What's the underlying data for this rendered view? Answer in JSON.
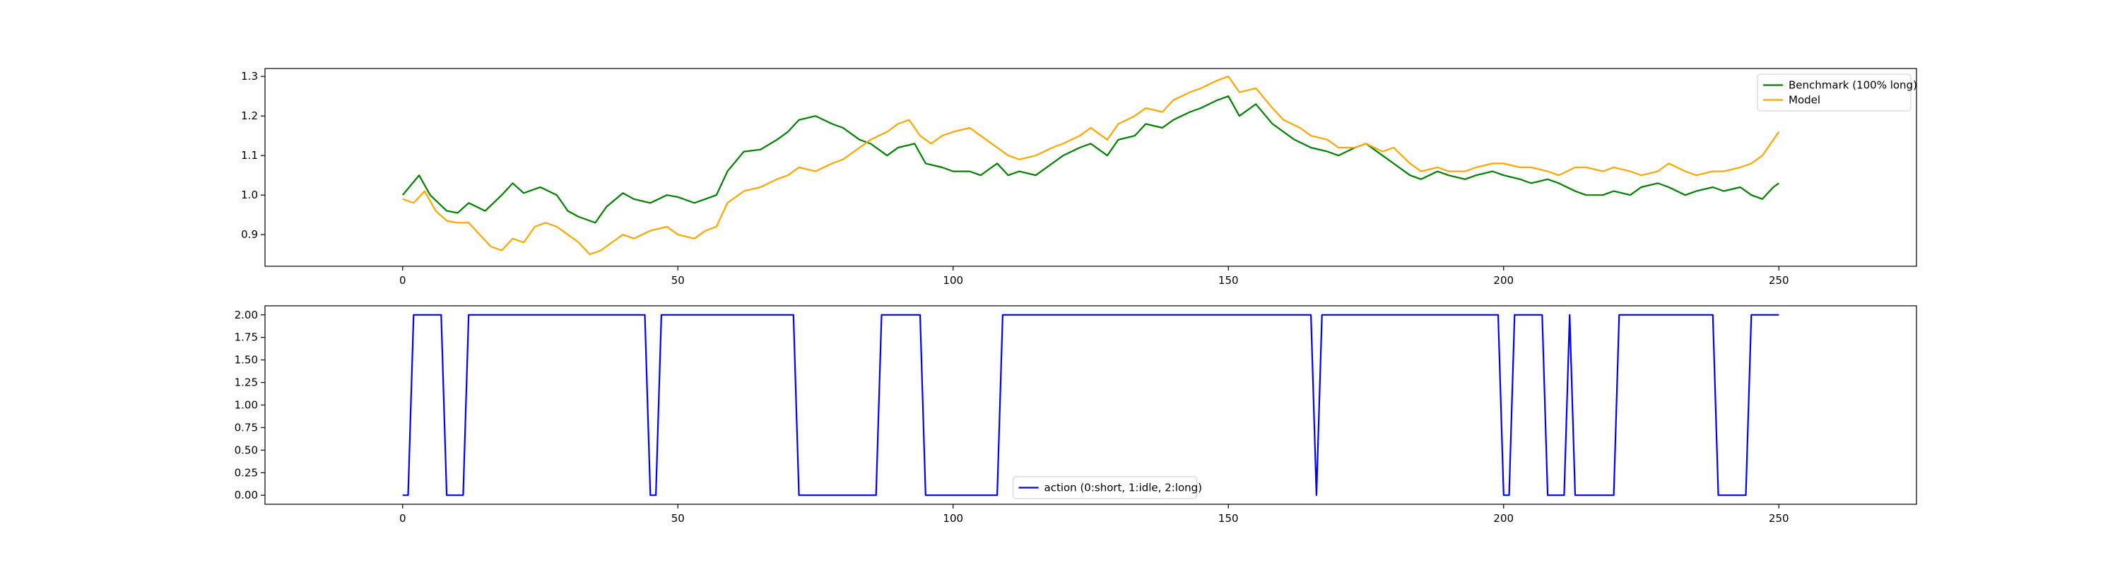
{
  "chart_data": [
    {
      "type": "line",
      "title": "",
      "xlabel": "",
      "ylabel": "",
      "xlim": [
        -25,
        275
      ],
      "ylim": [
        0.82,
        1.32
      ],
      "xticks": [
        0,
        50,
        100,
        150,
        200,
        250
      ],
      "yticks": [
        0.9,
        1.0,
        1.1,
        1.2,
        1.3
      ],
      "ytick_labels": [
        "0.9",
        "1.0",
        "1.1",
        "1.2",
        "1.3"
      ],
      "grid": false,
      "legend_position": "top-right",
      "series": [
        {
          "name": "Benchmark (100% long)",
          "color": "#008000",
          "points": [
            [
              0,
              1.0
            ],
            [
              3,
              1.05
            ],
            [
              5,
              1.0
            ],
            [
              8,
              0.96
            ],
            [
              10,
              0.955
            ],
            [
              12,
              0.98
            ],
            [
              15,
              0.96
            ],
            [
              18,
              1.0
            ],
            [
              20,
              1.03
            ],
            [
              22,
              1.005
            ],
            [
              25,
              1.02
            ],
            [
              28,
              1.0
            ],
            [
              30,
              0.96
            ],
            [
              32,
              0.945
            ],
            [
              35,
              0.93
            ],
            [
              37,
              0.97
            ],
            [
              40,
              1.005
            ],
            [
              42,
              0.99
            ],
            [
              45,
              0.98
            ],
            [
              48,
              1.0
            ],
            [
              50,
              0.995
            ],
            [
              53,
              0.98
            ],
            [
              55,
              0.99
            ],
            [
              57,
              1.0
            ],
            [
              59,
              1.06
            ],
            [
              62,
              1.11
            ],
            [
              65,
              1.115
            ],
            [
              68,
              1.14
            ],
            [
              70,
              1.16
            ],
            [
              72,
              1.19
            ],
            [
              75,
              1.2
            ],
            [
              78,
              1.18
            ],
            [
              80,
              1.17
            ],
            [
              83,
              1.14
            ],
            [
              85,
              1.13
            ],
            [
              88,
              1.1
            ],
            [
              90,
              1.12
            ],
            [
              93,
              1.13
            ],
            [
              95,
              1.08
            ],
            [
              98,
              1.07
            ],
            [
              100,
              1.06
            ],
            [
              103,
              1.06
            ],
            [
              105,
              1.05
            ],
            [
              108,
              1.08
            ],
            [
              110,
              1.05
            ],
            [
              112,
              1.06
            ],
            [
              115,
              1.05
            ],
            [
              118,
              1.08
            ],
            [
              120,
              1.1
            ],
            [
              123,
              1.12
            ],
            [
              125,
              1.13
            ],
            [
              128,
              1.1
            ],
            [
              130,
              1.14
            ],
            [
              133,
              1.15
            ],
            [
              135,
              1.18
            ],
            [
              138,
              1.17
            ],
            [
              140,
              1.19
            ],
            [
              143,
              1.21
            ],
            [
              145,
              1.22
            ],
            [
              148,
              1.24
            ],
            [
              150,
              1.25
            ],
            [
              152,
              1.2
            ],
            [
              155,
              1.23
            ],
            [
              158,
              1.18
            ],
            [
              160,
              1.16
            ],
            [
              162,
              1.14
            ],
            [
              165,
              1.12
            ],
            [
              168,
              1.11
            ],
            [
              170,
              1.1
            ],
            [
              173,
              1.12
            ],
            [
              175,
              1.13
            ],
            [
              178,
              1.1
            ],
            [
              180,
              1.08
            ],
            [
              183,
              1.05
            ],
            [
              185,
              1.04
            ],
            [
              188,
              1.06
            ],
            [
              190,
              1.05
            ],
            [
              193,
              1.04
            ],
            [
              195,
              1.05
            ],
            [
              198,
              1.06
            ],
            [
              200,
              1.05
            ],
            [
              203,
              1.04
            ],
            [
              205,
              1.03
            ],
            [
              208,
              1.04
            ],
            [
              210,
              1.03
            ],
            [
              213,
              1.01
            ],
            [
              215,
              1.0
            ],
            [
              218,
              1.0
            ],
            [
              220,
              1.01
            ],
            [
              223,
              1.0
            ],
            [
              225,
              1.02
            ],
            [
              228,
              1.03
            ],
            [
              230,
              1.02
            ],
            [
              233,
              1.0
            ],
            [
              235,
              1.01
            ],
            [
              238,
              1.02
            ],
            [
              240,
              1.01
            ],
            [
              243,
              1.02
            ],
            [
              245,
              1.0
            ],
            [
              247,
              0.99
            ],
            [
              249,
              1.02
            ],
            [
              250,
              1.03
            ]
          ]
        },
        {
          "name": "Model",
          "color": "#FFA500",
          "points": [
            [
              0,
              0.99
            ],
            [
              2,
              0.98
            ],
            [
              4,
              1.01
            ],
            [
              6,
              0.96
            ],
            [
              8,
              0.935
            ],
            [
              10,
              0.93
            ],
            [
              12,
              0.93
            ],
            [
              14,
              0.9
            ],
            [
              16,
              0.87
            ],
            [
              18,
              0.86
            ],
            [
              20,
              0.89
            ],
            [
              22,
              0.88
            ],
            [
              24,
              0.92
            ],
            [
              26,
              0.93
            ],
            [
              28,
              0.92
            ],
            [
              30,
              0.9
            ],
            [
              32,
              0.88
            ],
            [
              34,
              0.85
            ],
            [
              36,
              0.86
            ],
            [
              38,
              0.88
            ],
            [
              40,
              0.9
            ],
            [
              42,
              0.89
            ],
            [
              45,
              0.91
            ],
            [
              48,
              0.92
            ],
            [
              50,
              0.9
            ],
            [
              53,
              0.89
            ],
            [
              55,
              0.91
            ],
            [
              57,
              0.92
            ],
            [
              59,
              0.98
            ],
            [
              62,
              1.01
            ],
            [
              65,
              1.02
            ],
            [
              68,
              1.04
            ],
            [
              70,
              1.05
            ],
            [
              72,
              1.07
            ],
            [
              75,
              1.06
            ],
            [
              78,
              1.08
            ],
            [
              80,
              1.09
            ],
            [
              83,
              1.12
            ],
            [
              85,
              1.14
            ],
            [
              88,
              1.16
            ],
            [
              90,
              1.18
            ],
            [
              92,
              1.19
            ],
            [
              94,
              1.15
            ],
            [
              96,
              1.13
            ],
            [
              98,
              1.15
            ],
            [
              100,
              1.16
            ],
            [
              103,
              1.17
            ],
            [
              105,
              1.15
            ],
            [
              108,
              1.12
            ],
            [
              110,
              1.1
            ],
            [
              112,
              1.09
            ],
            [
              115,
              1.1
            ],
            [
              118,
              1.12
            ],
            [
              120,
              1.13
            ],
            [
              123,
              1.15
            ],
            [
              125,
              1.17
            ],
            [
              128,
              1.14
            ],
            [
              130,
              1.18
            ],
            [
              133,
              1.2
            ],
            [
              135,
              1.22
            ],
            [
              138,
              1.21
            ],
            [
              140,
              1.24
            ],
            [
              143,
              1.26
            ],
            [
              145,
              1.27
            ],
            [
              148,
              1.29
            ],
            [
              150,
              1.3
            ],
            [
              152,
              1.26
            ],
            [
              155,
              1.27
            ],
            [
              158,
              1.22
            ],
            [
              160,
              1.19
            ],
            [
              163,
              1.17
            ],
            [
              165,
              1.15
            ],
            [
              168,
              1.14
            ],
            [
              170,
              1.12
            ],
            [
              173,
              1.12
            ],
            [
              175,
              1.13
            ],
            [
              178,
              1.11
            ],
            [
              180,
              1.12
            ],
            [
              183,
              1.08
            ],
            [
              185,
              1.06
            ],
            [
              188,
              1.07
            ],
            [
              190,
              1.06
            ],
            [
              193,
              1.06
            ],
            [
              195,
              1.07
            ],
            [
              198,
              1.08
            ],
            [
              200,
              1.08
            ],
            [
              203,
              1.07
            ],
            [
              205,
              1.07
            ],
            [
              208,
              1.06
            ],
            [
              210,
              1.05
            ],
            [
              213,
              1.07
            ],
            [
              215,
              1.07
            ],
            [
              218,
              1.06
            ],
            [
              220,
              1.07
            ],
            [
              223,
              1.06
            ],
            [
              225,
              1.05
            ],
            [
              228,
              1.06
            ],
            [
              230,
              1.08
            ],
            [
              233,
              1.06
            ],
            [
              235,
              1.05
            ],
            [
              238,
              1.06
            ],
            [
              240,
              1.06
            ],
            [
              243,
              1.07
            ],
            [
              245,
              1.08
            ],
            [
              247,
              1.1
            ],
            [
              249,
              1.14
            ],
            [
              250,
              1.16
            ]
          ]
        }
      ]
    },
    {
      "type": "line",
      "title": "",
      "xlabel": "",
      "ylabel": "",
      "xlim": [
        -25,
        275
      ],
      "ylim": [
        -0.1,
        2.1
      ],
      "xticks": [
        0,
        50,
        100,
        150,
        200,
        250
      ],
      "yticks": [
        0.0,
        0.25,
        0.5,
        0.75,
        1.0,
        1.25,
        1.5,
        1.75,
        2.0
      ],
      "ytick_labels": [
        "0.00",
        "0.25",
        "0.50",
        "0.75",
        "1.00",
        "1.25",
        "1.50",
        "1.75",
        "2.00"
      ],
      "grid": false,
      "legend_position": "bottom-center",
      "series": [
        {
          "name": "action (0:short, 1:idle, 2:long)",
          "color": "#0000FF",
          "points": [
            [
              0,
              0
            ],
            [
              1,
              0
            ],
            [
              2,
              2
            ],
            [
              7,
              2
            ],
            [
              8,
              0
            ],
            [
              11,
              0
            ],
            [
              12,
              2
            ],
            [
              44,
              2
            ],
            [
              45,
              0
            ],
            [
              46,
              0
            ],
            [
              47,
              2
            ],
            [
              71,
              2
            ],
            [
              72,
              0
            ],
            [
              86,
              0
            ],
            [
              87,
              2
            ],
            [
              94,
              2
            ],
            [
              95,
              0
            ],
            [
              108,
              0
            ],
            [
              109,
              2
            ],
            [
              165,
              2
            ],
            [
              166,
              0
            ],
            [
              167,
              2
            ],
            [
              199,
              2
            ],
            [
              200,
              0
            ],
            [
              201,
              0
            ],
            [
              202,
              2
            ],
            [
              207,
              2
            ],
            [
              208,
              0
            ],
            [
              211,
              0
            ],
            [
              212,
              2
            ],
            [
              213,
              0
            ],
            [
              220,
              0
            ],
            [
              221,
              2
            ],
            [
              238,
              2
            ],
            [
              239,
              0
            ],
            [
              244,
              0
            ],
            [
              245,
              2
            ],
            [
              250,
              2
            ]
          ]
        }
      ]
    }
  ]
}
